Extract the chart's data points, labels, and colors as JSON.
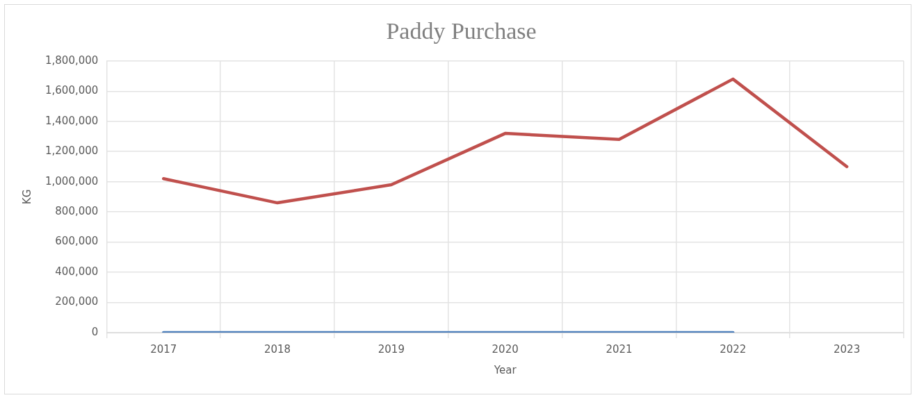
{
  "chart_data": {
    "type": "line",
    "title": "Paddy Purchase",
    "xlabel": "Year",
    "ylabel": "KG",
    "categories": [
      "2017",
      "2018",
      "2019",
      "2020",
      "2021",
      "2022",
      "2023"
    ],
    "series": [
      {
        "color": "#4f81bd",
        "values": [
          0,
          0,
          0,
          0,
          0,
          0,
          null
        ]
      },
      {
        "color": "#c0504d",
        "values": [
          1020000,
          860000,
          980000,
          1320000,
          1280000,
          1680000,
          1100000
        ]
      }
    ],
    "ylim": [
      0,
      1800000
    ],
    "yticks": [
      0,
      {
        "value": 200000,
        "label": "200,000"
      },
      {
        "value": 400000,
        "label": "400,000"
      },
      {
        "value": 600000,
        "label": "600,000"
      },
      {
        "value": 800000,
        "label": "800,000"
      },
      {
        "value": 1000000,
        "label": "1,000,000"
      },
      {
        "value": 1200000,
        "label": "1,200,000"
      },
      {
        "value": 1400000,
        "label": "1,400,000"
      },
      {
        "value": 1600000,
        "label": "1,600,000"
      },
      {
        "value": 1800000,
        "label": "1,800,000"
      }
    ],
    "grid": true,
    "legend": false,
    "marker": "none",
    "line_style": "solid"
  }
}
